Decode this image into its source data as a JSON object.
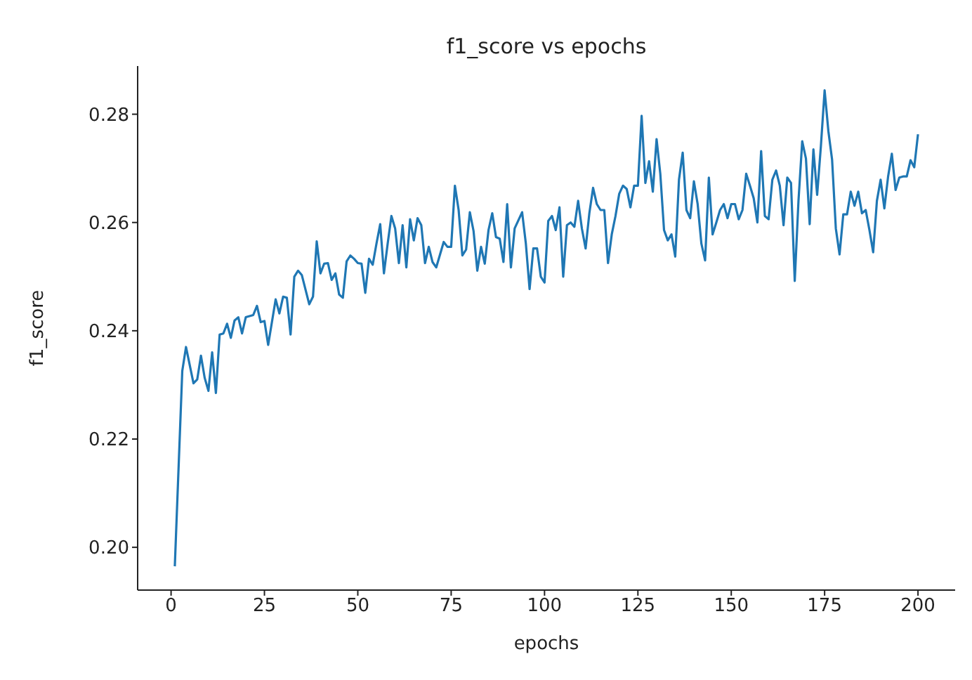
{
  "chart_data": {
    "type": "line",
    "title": "f1_score vs epochs",
    "xlabel": "epochs",
    "ylabel": "f1_score",
    "x": [
      1,
      3,
      4,
      6,
      7,
      8,
      9,
      10,
      11,
      12,
      13,
      14,
      15,
      16,
      17,
      18,
      19,
      20,
      22,
      23,
      24,
      25,
      26,
      28,
      29,
      30,
      31,
      32,
      33,
      34,
      35,
      37,
      38,
      39,
      40,
      41,
      42,
      43,
      44,
      45,
      46,
      47,
      48,
      49,
      50,
      51,
      52,
      53,
      54,
      55,
      56,
      57,
      58,
      59,
      60,
      61,
      62,
      63,
      64,
      65,
      66,
      67,
      68,
      69,
      70,
      71,
      73,
      74,
      75,
      76,
      77,
      78,
      79,
      80,
      81,
      82,
      83,
      84,
      85,
      86,
      87,
      88,
      89,
      90,
      91,
      92,
      94,
      95,
      96,
      97,
      98,
      99,
      100,
      101,
      102,
      103,
      104,
      105,
      106,
      107,
      108,
      109,
      110,
      111,
      112,
      113,
      114,
      115,
      116,
      117,
      118,
      119,
      120,
      121,
      122,
      123,
      124,
      125,
      126,
      127,
      128,
      129,
      130,
      131,
      132,
      133,
      134,
      135,
      136,
      137,
      138,
      139,
      140,
      141,
      142,
      143,
      144,
      145,
      146,
      147,
      148,
      149,
      150,
      151,
      152,
      153,
      154,
      155,
      156,
      157,
      158,
      159,
      160,
      161,
      162,
      163,
      164,
      165,
      166,
      167,
      168,
      169,
      170,
      171,
      172,
      173,
      174,
      175,
      176,
      177,
      178,
      179,
      180,
      181,
      182,
      183,
      184,
      185,
      186,
      187,
      188,
      189,
      190,
      191,
      192,
      193,
      194,
      195,
      196,
      197,
      198,
      199,
      200
    ],
    "series": [
      {
        "color": "#1f77b4",
        "values": [
          0.1965,
          0.2326,
          0.237,
          0.2303,
          0.231,
          0.2354,
          0.2313,
          0.2289,
          0.236,
          0.2285,
          0.2393,
          0.2395,
          0.2413,
          0.2387,
          0.2419,
          0.2425,
          0.2395,
          0.2425,
          0.2429,
          0.2446,
          0.2416,
          0.2418,
          0.2374,
          0.2458,
          0.2432,
          0.2463,
          0.2461,
          0.2393,
          0.25,
          0.2511,
          0.2503,
          0.2449,
          0.2463,
          0.2565,
          0.2506,
          0.2524,
          0.2525,
          0.2494,
          0.2506,
          0.2467,
          0.2461,
          0.2528,
          0.2539,
          0.2533,
          0.2525,
          0.2524,
          0.247,
          0.2533,
          0.2522,
          0.2561,
          0.2597,
          0.2506,
          0.2561,
          0.2612,
          0.2589,
          0.2525,
          0.2595,
          0.2517,
          0.2606,
          0.2567,
          0.2608,
          0.2595,
          0.2525,
          0.2555,
          0.2527,
          0.2517,
          0.2564,
          0.2555,
          0.2555,
          0.2668,
          0.2623,
          0.2539,
          0.255,
          0.2619,
          0.2584,
          0.2511,
          0.2555,
          0.2524,
          0.2586,
          0.2617,
          0.2573,
          0.257,
          0.2527,
          0.2634,
          0.2517,
          0.2589,
          0.2619,
          0.2561,
          0.2477,
          0.2552,
          0.2552,
          0.25,
          0.2489,
          0.2603,
          0.2612,
          0.2586,
          0.2628,
          0.25,
          0.2595,
          0.26,
          0.2592,
          0.264,
          0.2589,
          0.2552,
          0.2617,
          0.2664,
          0.2634,
          0.2623,
          0.2623,
          0.2525,
          0.2578,
          0.2612,
          0.2653,
          0.2668,
          0.2662,
          0.2628,
          0.2668,
          0.2668,
          0.2797,
          0.2673,
          0.2713,
          0.2657,
          0.2754,
          0.269,
          0.2586,
          0.2567,
          0.2578,
          0.2537,
          0.2679,
          0.2729,
          0.2623,
          0.2608,
          0.2676,
          0.2634,
          0.2561,
          0.253,
          0.2683,
          0.2578,
          0.26,
          0.2623,
          0.2634,
          0.2608,
          0.2634,
          0.2634,
          0.2606,
          0.2623,
          0.269,
          0.2668,
          0.2645,
          0.26,
          0.2732,
          0.2612,
          0.2606,
          0.2679,
          0.2696,
          0.2668,
          0.2595,
          0.2683,
          0.2673,
          0.2492,
          0.264,
          0.275,
          0.2718,
          0.2597,
          0.2735,
          0.2651,
          0.2741,
          0.2844,
          0.2769,
          0.2716,
          0.2589,
          0.2541,
          0.2615,
          0.2615,
          0.2657,
          0.2631,
          0.2657,
          0.2617,
          0.2623,
          0.2586,
          0.2545,
          0.264,
          0.2679,
          0.2626,
          0.2685,
          0.2727,
          0.266,
          0.2683,
          0.2685,
          0.2685,
          0.2715,
          0.2702,
          0.2763
        ]
      }
    ],
    "xlim": [
      -8.95,
      209.95
    ],
    "ylim": [
      0.1921,
      0.2889
    ],
    "xticks": [
      0,
      25,
      50,
      75,
      100,
      125,
      150,
      175,
      200
    ],
    "yticks": [
      {
        "value": 0.2,
        "label": "0.20"
      },
      {
        "value": 0.22,
        "label": "0.22"
      },
      {
        "value": 0.24,
        "label": "0.24"
      },
      {
        "value": 0.26,
        "label": "0.26"
      },
      {
        "value": 0.28,
        "label": "0.28"
      }
    ],
    "grid": false,
    "legend": false,
    "marker": "none",
    "line_style": "solid"
  }
}
